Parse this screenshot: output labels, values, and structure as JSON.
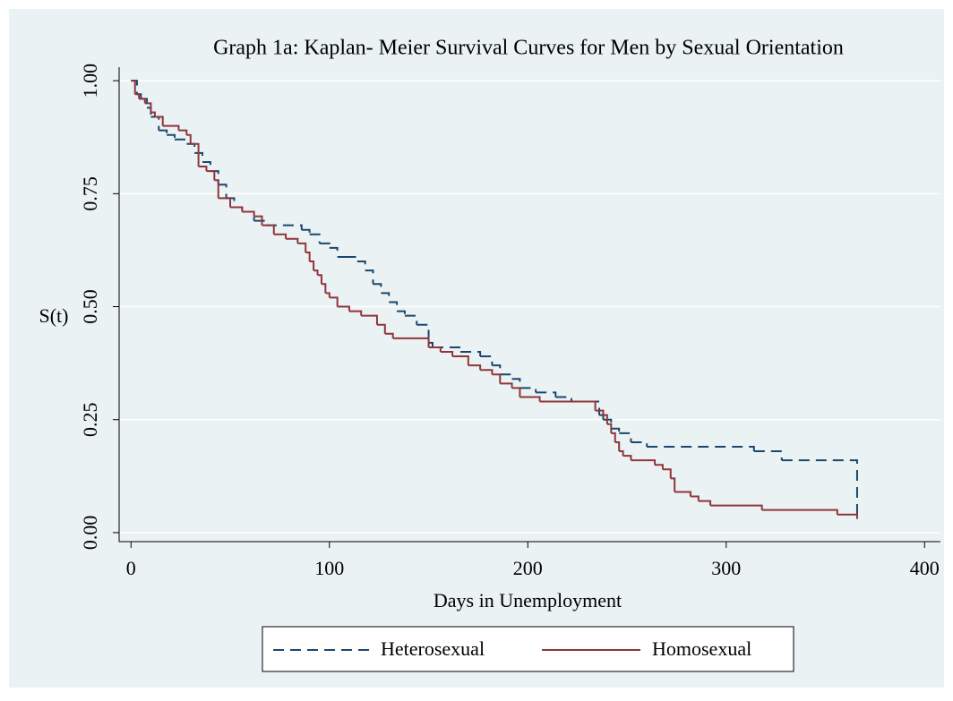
{
  "chart_data": {
    "type": "step",
    "title": "Graph 1a: Kaplan- Meier Survival Curves for Men by Sexual Orientation",
    "x_label": "Days in Unemployment",
    "y_label": "S(t)",
    "xlim": [
      -6,
      408
    ],
    "ylim": [
      -0.02,
      1.03
    ],
    "xticks": [
      0,
      100,
      200,
      300,
      400
    ],
    "yticks": [
      {
        "value": 0,
        "label": "0.00"
      },
      {
        "value": 0.25,
        "label": "0.25"
      },
      {
        "value": 0.5,
        "label": "0.50"
      },
      {
        "value": 0.75,
        "label": "0.75"
      },
      {
        "value": 1,
        "label": "1.00"
      }
    ],
    "grid": true,
    "legend": "bottom",
    "series": [
      {
        "name": "Heterosexual",
        "color": "#1a476f",
        "dashed": true,
        "x": [
          0,
          3,
          5,
          8,
          10,
          14,
          18,
          22,
          28,
          32,
          36,
          40,
          44,
          48,
          52,
          56,
          62,
          68,
          86,
          90,
          95,
          100,
          104,
          108,
          114,
          118,
          122,
          126,
          130,
          134,
          138,
          144,
          150,
          152,
          166,
          176,
          182,
          186,
          192,
          196,
          204,
          214,
          222,
          236,
          238,
          242,
          246,
          252,
          260,
          314,
          328,
          366
        ],
        "values": [
          1.0,
          0.97,
          0.96,
          0.94,
          0.92,
          0.89,
          0.88,
          0.87,
          0.86,
          0.84,
          0.82,
          0.8,
          0.77,
          0.74,
          0.72,
          0.71,
          0.69,
          0.68,
          0.67,
          0.66,
          0.64,
          0.63,
          0.61,
          0.61,
          0.6,
          0.58,
          0.55,
          0.53,
          0.51,
          0.49,
          0.48,
          0.46,
          0.42,
          0.41,
          0.4,
          0.39,
          0.37,
          0.35,
          0.34,
          0.32,
          0.31,
          0.3,
          0.29,
          0.26,
          0.25,
          0.23,
          0.22,
          0.2,
          0.19,
          0.18,
          0.16,
          0.03
        ]
      },
      {
        "name": "Homosexual",
        "color": "#90353b",
        "dashed": false,
        "x": [
          0,
          2,
          4,
          7,
          10,
          12,
          16,
          24,
          28,
          30,
          34,
          38,
          42,
          44,
          50,
          56,
          62,
          66,
          72,
          78,
          84,
          88,
          90,
          92,
          94,
          96,
          98,
          100,
          104,
          110,
          116,
          124,
          128,
          132,
          136,
          150,
          156,
          162,
          170,
          176,
          182,
          186,
          192,
          196,
          206,
          234,
          238,
          240,
          242,
          244,
          246,
          248,
          252,
          258,
          264,
          268,
          272,
          274,
          282,
          286,
          292,
          318,
          356,
          364,
          366
        ],
        "values": [
          1.0,
          0.97,
          0.96,
          0.95,
          0.93,
          0.92,
          0.9,
          0.89,
          0.88,
          0.86,
          0.81,
          0.8,
          0.78,
          0.74,
          0.72,
          0.71,
          0.7,
          0.68,
          0.66,
          0.65,
          0.64,
          0.62,
          0.6,
          0.58,
          0.57,
          0.55,
          0.53,
          0.52,
          0.5,
          0.49,
          0.48,
          0.46,
          0.44,
          0.43,
          0.43,
          0.41,
          0.4,
          0.39,
          0.37,
          0.36,
          0.35,
          0.33,
          0.32,
          0.3,
          0.29,
          0.27,
          0.26,
          0.24,
          0.22,
          0.2,
          0.18,
          0.17,
          0.16,
          0.16,
          0.15,
          0.14,
          0.12,
          0.09,
          0.08,
          0.07,
          0.06,
          0.05,
          0.04,
          0.04,
          0.03
        ]
      }
    ]
  }
}
